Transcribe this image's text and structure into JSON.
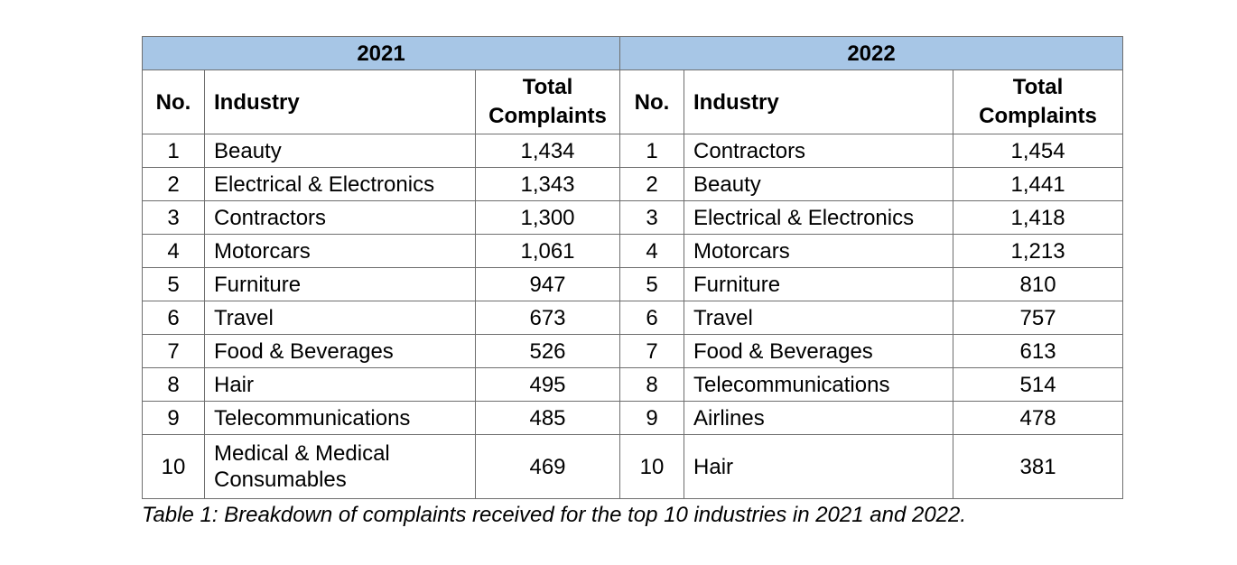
{
  "table": {
    "year_a": "2021",
    "year_b": "2022",
    "headers": {
      "no": "No.",
      "industry": "Industry",
      "total": "Total Complaints"
    },
    "rows": [
      {
        "no_a": "1",
        "ind_a": "Beauty",
        "tot_a": "1,434",
        "no_b": "1",
        "ind_b": "Contractors",
        "tot_b": "1,454"
      },
      {
        "no_a": "2",
        "ind_a": "Electrical & Electronics",
        "tot_a": "1,343",
        "no_b": "2",
        "ind_b": "Beauty",
        "tot_b": "1,441"
      },
      {
        "no_a": "3",
        "ind_a": "Contractors",
        "tot_a": "1,300",
        "no_b": "3",
        "ind_b": "Electrical & Electronics",
        "tot_b": "1,418"
      },
      {
        "no_a": "4",
        "ind_a": "Motorcars",
        "tot_a": "1,061",
        "no_b": "4",
        "ind_b": "Motorcars",
        "tot_b": "1,213"
      },
      {
        "no_a": "5",
        "ind_a": "Furniture",
        "tot_a": "947",
        "no_b": "5",
        "ind_b": "Furniture",
        "tot_b": "810"
      },
      {
        "no_a": "6",
        "ind_a": "Travel",
        "tot_a": "673",
        "no_b": "6",
        "ind_b": "Travel",
        "tot_b": "757"
      },
      {
        "no_a": "7",
        "ind_a": "Food & Beverages",
        "tot_a": "526",
        "no_b": "7",
        "ind_b": "Food & Beverages",
        "tot_b": "613"
      },
      {
        "no_a": "8",
        "ind_a": "Hair",
        "tot_a": "495",
        "no_b": "8",
        "ind_b": "Telecommunications",
        "tot_b": "514"
      },
      {
        "no_a": "9",
        "ind_a": "Telecommunications",
        "tot_a": "485",
        "no_b": "9",
        "ind_b": "Airlines",
        "tot_b": "478"
      },
      {
        "no_a": "10",
        "ind_a": "Medical & Medical Consumables",
        "tot_a": "469",
        "no_b": "10",
        "ind_b": "Hair",
        "tot_b": "381"
      }
    ],
    "header_bg": "#a7c6e6"
  },
  "caption": "Table 1: Breakdown of complaints received for the top 10 industries in 2021 and 2022."
}
